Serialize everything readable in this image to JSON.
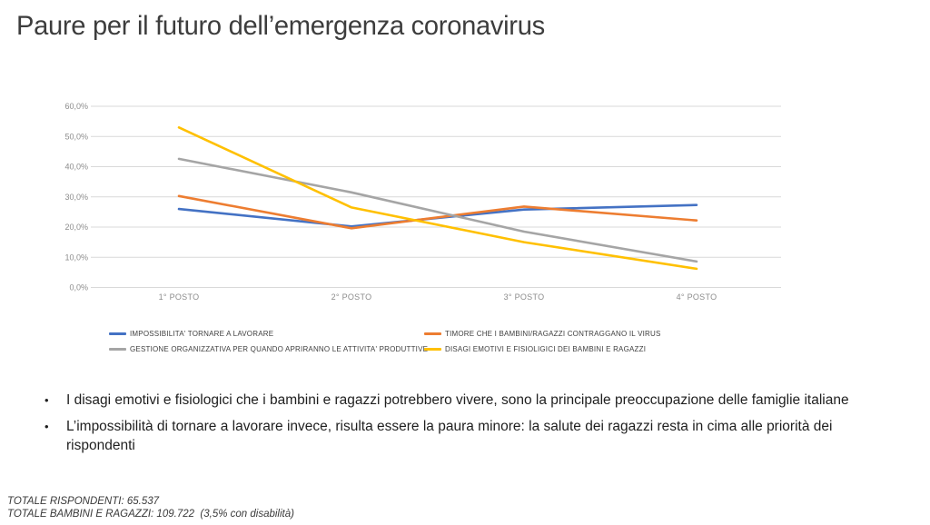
{
  "slide": {
    "title": "Paure per il futuro dell’emergenza coronavirus"
  },
  "chart_data": {
    "type": "line",
    "categories": [
      "1° POSTO",
      "2° POSTO",
      "3° POSTO",
      "4° POSTO"
    ],
    "series": [
      {
        "name": "IMPOSSIBILITA' TORNARE A LAVORARE",
        "color": "#4472C4",
        "values": [
          26.0,
          20.2,
          25.8,
          27.3
        ]
      },
      {
        "name": "TIMORE CHE I BAMBINI/RAGAZZI CONTRAGGANO IL VIRUS",
        "color": "#ED7D31",
        "values": [
          30.3,
          19.6,
          26.8,
          22.2
        ]
      },
      {
        "name": "GESTIONE ORGANIZZATIVA PER QUANDO APRIRANNO LE ATTIVITA' PRODUTTIVE",
        "color": "#A5A5A5",
        "values": [
          42.6,
          31.5,
          18.5,
          8.6
        ]
      },
      {
        "name": "DISAGI EMOTIVI E FISIOLIGICI DEI BAMBINI E RAGAZZI",
        "color": "#FFC000",
        "values": [
          53.0,
          26.5,
          15.0,
          6.2
        ]
      }
    ],
    "y_ticks": [
      "60,0%",
      "50,0%",
      "40,0%",
      "30,0%",
      "20,0%",
      "10,0%",
      "0,0%"
    ],
    "ylim": [
      0,
      60
    ],
    "grid": true,
    "legend_position": "bottom",
    "gridline_color": "#d9d9d9",
    "axis_label_color": "#8c8c8c"
  },
  "bullets": [
    "I disagi emotivi e fisiologici che i bambini e ragazzi potrebbero vivere, sono la principale preoccupazione delle famiglie italiane",
    "L’impossibilità di tornare a lavorare invece, risulta essere la paura minore: la salute dei ragazzi resta in cima alle priorità dei rispondenti"
  ],
  "footer": {
    "line1": "TOTALE RISPONDENTI: 65.537",
    "line2": "TOTALE BAMBINI E RAGAZZI: 109.722  (3,5% con disabilità)"
  }
}
